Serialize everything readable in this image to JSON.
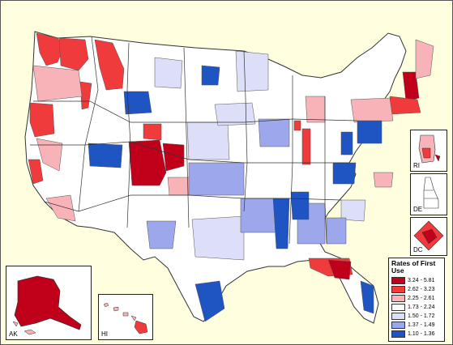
{
  "legend": {
    "title": "Rates of First Use",
    "classes": [
      {
        "label": "3.24 - 5.81",
        "color": "#c0001a"
      },
      {
        "label": "2.62 - 3.23",
        "color": "#ef3b3b"
      },
      {
        "label": "2.25 - 2.61",
        "color": "#f7b3b8"
      },
      {
        "label": "1.73 - 2.24",
        "color": "#ffffff"
      },
      {
        "label": "1.50 - 1.72",
        "color": "#dcdff7"
      },
      {
        "label": "1.37 - 1.49",
        "color": "#9da8ec"
      },
      {
        "label": "1.10 - 1.36",
        "color": "#1e55c2"
      }
    ]
  },
  "insets": {
    "ri": "RI",
    "de": "DE",
    "dc": "DC",
    "ak": "AK",
    "hi": "HI"
  },
  "colors": {
    "background": "#ffffe0",
    "ocean": "#ffffe0",
    "border": "#333333"
  }
}
